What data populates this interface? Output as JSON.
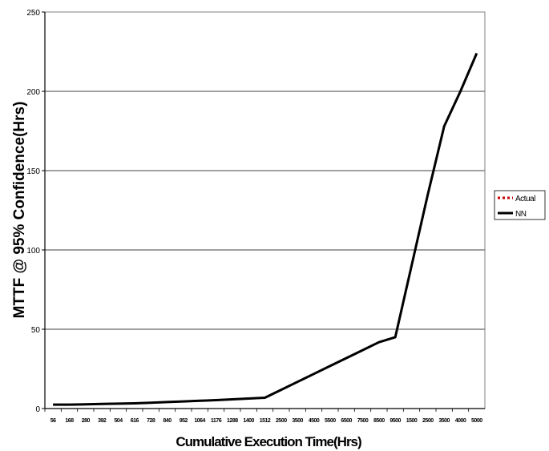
{
  "chart_data": {
    "type": "line",
    "xlabel": "Cumulative Execution Time(Hrs)",
    "ylabel": "MTTF @ 95% Confidence(Hrs)",
    "ylim": [
      0,
      250
    ],
    "y_ticks": [
      0,
      50,
      100,
      150,
      200,
      250
    ],
    "grid": "horizontal",
    "legend_position": "right",
    "categories": [
      "56",
      "168",
      "280",
      "392",
      "504",
      "616",
      "728",
      "840",
      "952",
      "1064",
      "1176",
      "1288",
      "1400",
      "1512",
      "2500",
      "3500",
      "4500",
      "5500",
      "6500",
      "7500",
      "8500",
      "9500",
      "1500",
      "2500",
      "3500",
      "4000",
      "5000"
    ],
    "series": [
      {
        "name": "Actual",
        "style": "dotted",
        "color": "#cc0000",
        "values": [
          2.5,
          2.5,
          2.7,
          2.9,
          3.1,
          3.3,
          3.7,
          4.1,
          4.5,
          4.9,
          5.3,
          5.8,
          6.3,
          6.8,
          11.8,
          16.8,
          21.8,
          26.8,
          31.8,
          36.8,
          41.8,
          45,
          90,
          135,
          178,
          200,
          224
        ]
      },
      {
        "name": "NN",
        "style": "solid",
        "color": "#000000",
        "values": [
          2.5,
          2.5,
          2.7,
          2.9,
          3.1,
          3.3,
          3.7,
          4.1,
          4.5,
          4.9,
          5.3,
          5.8,
          6.3,
          6.8,
          11.8,
          16.8,
          21.8,
          26.8,
          31.8,
          36.8,
          41.8,
          45,
          90,
          135,
          178,
          200,
          224
        ]
      }
    ]
  }
}
